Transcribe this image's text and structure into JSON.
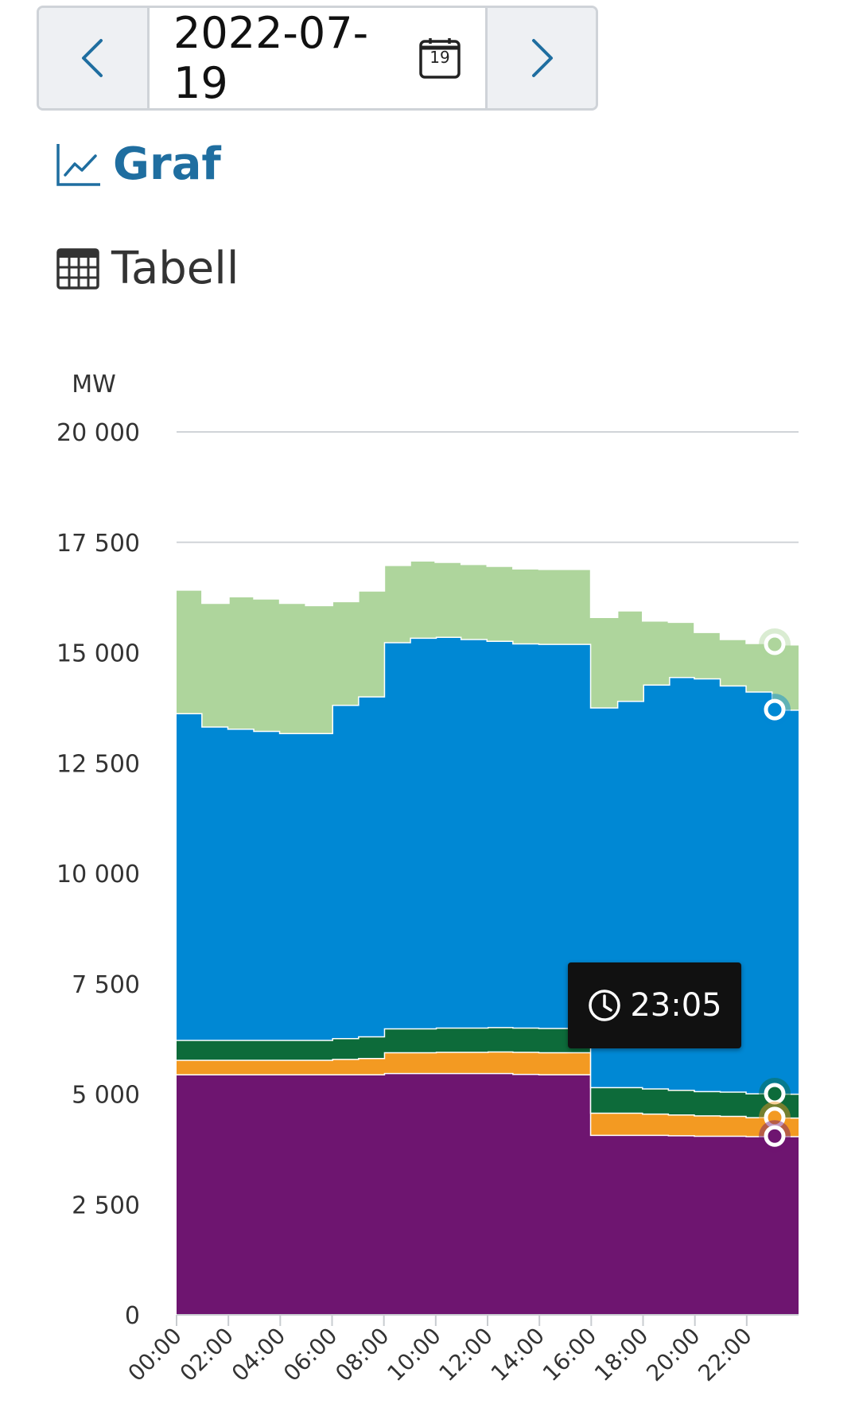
{
  "date_picker": {
    "date": "2022-07-19",
    "calendar_day": "19"
  },
  "views": {
    "graf_label": "Graf",
    "tabell_label": "Tabell"
  },
  "tooltip": {
    "time": "23:05"
  },
  "colors": {
    "purple": "#6e1570",
    "orange": "#f39a22",
    "dark_green": "#0d6b3a",
    "blue": "#0088d4",
    "light_green": "#aed59c",
    "accent": "#1f6ea0"
  },
  "chart_data": {
    "type": "area",
    "stacked": true,
    "ylabel": "MW",
    "ylim": [
      0,
      20000
    ],
    "y_ticks": [
      0,
      2500,
      5000,
      7500,
      10000,
      12500,
      15000,
      17500,
      20000
    ],
    "y_tick_labels": [
      "0",
      "2 500",
      "5 000",
      "7 500",
      "10 000",
      "12 500",
      "15 000",
      "17 500",
      "20 000"
    ],
    "x_tick_labels": [
      "00:00",
      "02:00",
      "04:00",
      "06:00",
      "08:00",
      "10:00",
      "12:00",
      "14:00",
      "16:00",
      "18:00",
      "20:00",
      "22:00"
    ],
    "x": [
      0,
      1,
      2,
      3,
      4,
      5,
      6,
      7,
      8,
      9,
      10,
      11,
      12,
      13,
      14,
      15,
      16,
      17,
      18,
      19,
      20,
      21,
      22,
      23,
      24
    ],
    "series": [
      {
        "color": "purple",
        "values": [
          5450,
          5450,
          5450,
          5450,
          5450,
          5450,
          5450,
          5450,
          5480,
          5480,
          5480,
          5480,
          5480,
          5460,
          5450,
          5450,
          4080,
          4080,
          4080,
          4070,
          4060,
          4060,
          4050,
          4050,
          4050
        ]
      },
      {
        "color": "orange",
        "values": [
          330,
          330,
          330,
          330,
          330,
          330,
          350,
          370,
          470,
          470,
          480,
          480,
          490,
          500,
          500,
          500,
          500,
          500,
          480,
          470,
          460,
          450,
          430,
          420,
          420
        ]
      },
      {
        "color": "dark_green",
        "values": [
          450,
          450,
          450,
          450,
          450,
          450,
          470,
          490,
          540,
          540,
          550,
          550,
          550,
          550,
          550,
          550,
          580,
          580,
          570,
          560,
          550,
          550,
          540,
          540,
          540
        ]
      },
      {
        "color": "blue",
        "values": [
          7400,
          7100,
          7050,
          7000,
          6950,
          6950,
          7550,
          7700,
          8750,
          8850,
          8850,
          8800,
          8750,
          8700,
          8700,
          8700,
          8600,
          8750,
          9150,
          9350,
          9350,
          9200,
          9100,
          8700,
          8700
        ]
      },
      {
        "color": "light_green",
        "values": [
          2800,
          2800,
          3000,
          3000,
          2950,
          2900,
          2350,
          2400,
          1750,
          1750,
          1700,
          1700,
          1700,
          1700,
          1700,
          1700,
          2050,
          2050,
          1450,
          1250,
          1050,
          1050,
          1100,
          1480,
          1480
        ]
      }
    ]
  }
}
